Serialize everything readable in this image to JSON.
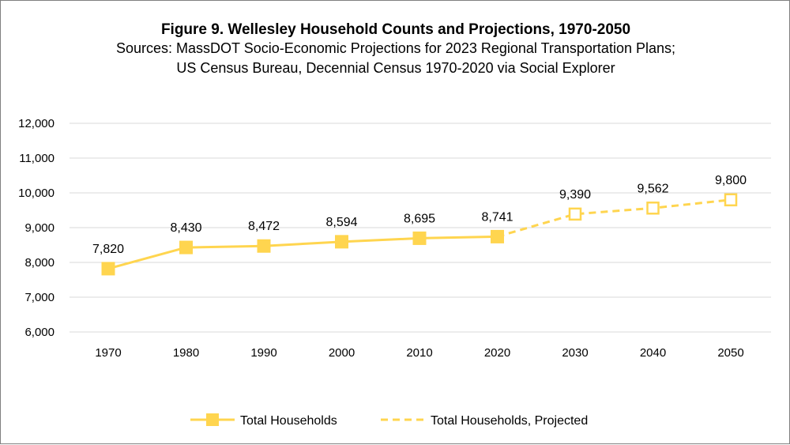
{
  "chart_data": {
    "type": "line",
    "title": "Figure 9. Wellesley Household Counts and Projections, 1970-2050",
    "subtitle_lines": [
      "Sources: MassDOT Socio-Economic Projections for 2023 Regional Transportation Plans;",
      "US Census Bureau, Decennial Census 1970-2020 via Social Explorer"
    ],
    "categories": [
      "1970",
      "1980",
      "1990",
      "2000",
      "2010",
      "2020",
      "2030",
      "2040",
      "2050"
    ],
    "y_ticks": [
      "6,000",
      "7,000",
      "8,000",
      "9,000",
      "10,000",
      "11,000",
      "12,000"
    ],
    "ylim": [
      6000,
      12000
    ],
    "grid": true,
    "legend_position": "bottom",
    "series": [
      {
        "name": "Total Households",
        "style": "solid-filled-marker",
        "values": [
          7820,
          8430,
          8472,
          8594,
          8695,
          8741,
          null,
          null,
          null
        ],
        "labels": [
          "7,820",
          "8,430",
          "8,472",
          "8,594",
          "8,695",
          "8,741",
          "",
          "",
          ""
        ]
      },
      {
        "name": "Total Households, Projected",
        "style": "dashed-open-marker",
        "values": [
          null,
          null,
          null,
          null,
          null,
          8741,
          9390,
          9562,
          9800
        ],
        "labels": [
          "",
          "",
          "",
          "",
          "",
          "",
          "9,390",
          "9,562",
          "9,800"
        ]
      }
    ],
    "colors": {
      "series": "#FFD54F",
      "grid": "#d9d9d9"
    }
  }
}
